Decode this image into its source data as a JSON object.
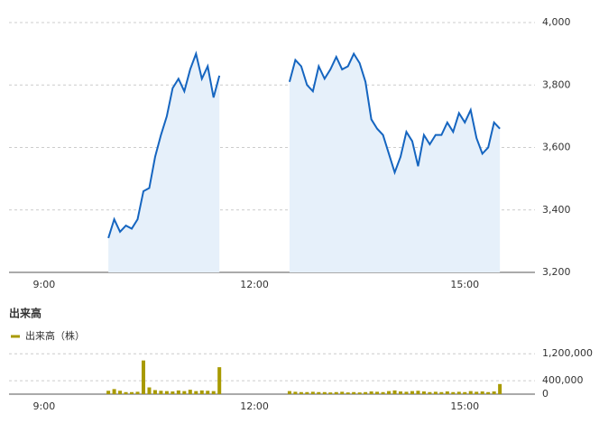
{
  "chart_data": [
    {
      "type": "line",
      "x": [
        "9:55",
        "10:00",
        "10:05",
        "10:10",
        "10:15",
        "10:20",
        "10:25",
        "10:30",
        "10:35",
        "10:40",
        "10:45",
        "10:50",
        "10:55",
        "11:00",
        "11:05",
        "11:10",
        "11:15",
        "11:20",
        "11:25",
        "11:30",
        "12:00",
        "12:30",
        "12:35",
        "12:40",
        "12:45",
        "12:50",
        "12:55",
        "13:00",
        "13:05",
        "13:10",
        "13:15",
        "13:20",
        "13:25",
        "13:30",
        "13:35",
        "13:40",
        "13:45",
        "13:50",
        "13:55",
        "14:00",
        "14:05",
        "14:10",
        "14:15",
        "14:20",
        "14:25",
        "14:30",
        "14:35",
        "14:40",
        "14:45",
        "14:50",
        "14:55",
        "15:00",
        "15:05",
        "15:10",
        "15:15",
        "15:20",
        "15:25",
        "15:30"
      ],
      "values": [
        3310,
        3370,
        3330,
        3350,
        3340,
        3370,
        3460,
        3470,
        3570,
        3640,
        3700,
        3790,
        3820,
        3780,
        3850,
        3900,
        3820,
        3860,
        3760,
        3830,
        null,
        3810,
        3880,
        3860,
        3800,
        3780,
        3860,
        3820,
        3850,
        3890,
        3850,
        3860,
        3900,
        3870,
        3810,
        3690,
        3660,
        3640,
        3580,
        3520,
        3570,
        3650,
        3620,
        3540,
        3640,
        3610,
        3640,
        3640,
        3680,
        3650,
        3710,
        3680,
        3720,
        3630,
        3580,
        3600,
        3680,
        3660
      ],
      "color": "#1565c0",
      "area_color": "#e6f0fa",
      "xlim": [
        "8:30",
        "16:00"
      ],
      "xticks": [
        "9:00",
        "12:00",
        "15:00"
      ],
      "ylim": [
        3200,
        4000
      ],
      "yticks": [
        {
          "value": 3200,
          "label": "3,200"
        },
        {
          "value": 3400,
          "label": "3,400"
        },
        {
          "value": 3600,
          "label": "3,600"
        },
        {
          "value": 3800,
          "label": "3,800"
        },
        {
          "value": 4000,
          "label": "4,000"
        }
      ],
      "grid": true
    },
    {
      "type": "bar",
      "title": "出来高",
      "x": [
        "9:55",
        "10:00",
        "10:05",
        "10:10",
        "10:15",
        "10:20",
        "10:25",
        "10:30",
        "10:35",
        "10:40",
        "10:45",
        "10:50",
        "10:55",
        "11:00",
        "11:05",
        "11:10",
        "11:15",
        "11:20",
        "11:25",
        "11:30",
        "12:00",
        "12:30",
        "12:35",
        "12:40",
        "12:45",
        "12:50",
        "12:55",
        "13:00",
        "13:05",
        "13:10",
        "13:15",
        "13:20",
        "13:25",
        "13:30",
        "13:35",
        "13:40",
        "13:45",
        "13:50",
        "13:55",
        "14:00",
        "14:05",
        "14:10",
        "14:15",
        "14:20",
        "14:25",
        "14:30",
        "14:35",
        "14:40",
        "14:45",
        "14:50",
        "14:55",
        "15:00",
        "15:05",
        "15:10",
        "15:15",
        "15:20",
        "15:25",
        "15:30"
      ],
      "series": [
        {
          "name": "出来高（株）",
          "color": "#a89a00",
          "values": [
            100000,
            150000,
            100000,
            60000,
            60000,
            70000,
            1000000,
            200000,
            120000,
            100000,
            90000,
            80000,
            110000,
            90000,
            130000,
            90000,
            110000,
            100000,
            90000,
            800000,
            null,
            90000,
            70000,
            60000,
            60000,
            70000,
            60000,
            60000,
            50000,
            60000,
            70000,
            50000,
            60000,
            50000,
            60000,
            80000,
            70000,
            60000,
            90000,
            110000,
            80000,
            70000,
            90000,
            100000,
            80000,
            60000,
            70000,
            60000,
            80000,
            60000,
            70000,
            60000,
            90000,
            70000,
            80000,
            60000,
            80000,
            300000
          ]
        }
      ],
      "xlim": [
        "8:30",
        "16:00"
      ],
      "xticks": [
        "9:00",
        "12:00",
        "15:00"
      ],
      "ylim": [
        0,
        1500000
      ],
      "yticks": [
        0,
        {
          "value": 400000,
          "label": "400,000"
        },
        {
          "value": 1200000,
          "label": "1,200,000"
        }
      ],
      "grid": true,
      "legend": "top-left"
    }
  ]
}
